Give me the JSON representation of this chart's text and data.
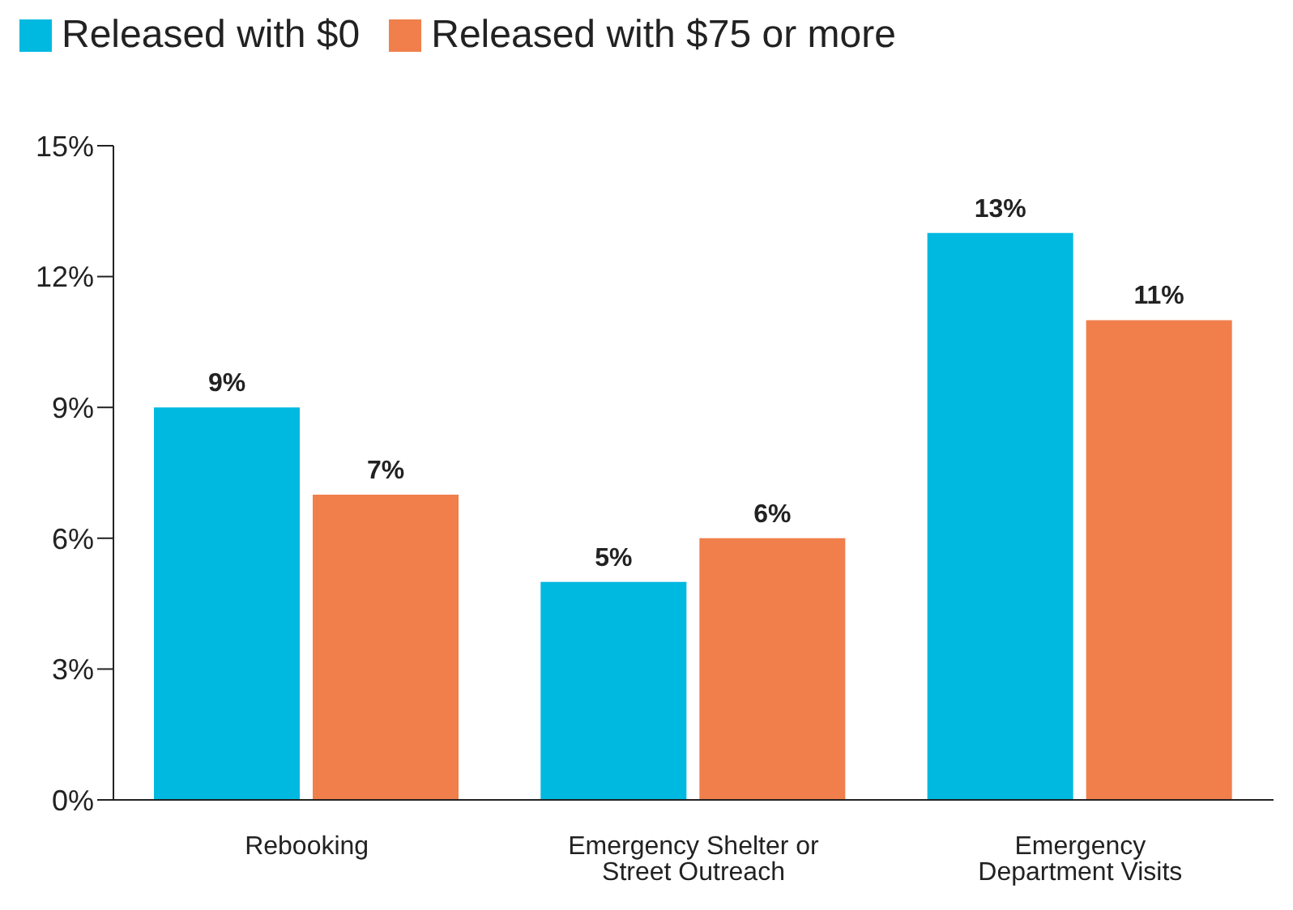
{
  "chart_data": {
    "type": "bar",
    "categories": [
      "Rebooking",
      "Emergency Shelter or Street Outreach",
      "Emergency Department Visits"
    ],
    "series": [
      {
        "name": "Released with $0",
        "color": "#00b9e0",
        "values": [
          9,
          5,
          13
        ],
        "value_labels": [
          "9%",
          "5%",
          "13%"
        ]
      },
      {
        "name": "Released with $75 or more",
        "color": "#f07f4c",
        "values": [
          7,
          6,
          11
        ],
        "value_labels": [
          "7%",
          "6%",
          "11%"
        ]
      }
    ],
    "ylim": [
      0,
      15
    ],
    "yticks": [
      {
        "value": 0,
        "label": "0%"
      },
      {
        "value": 3,
        "label": "3%"
      },
      {
        "value": 6,
        "label": "6%"
      },
      {
        "value": 9,
        "label": "9%"
      },
      {
        "value": 12,
        "label": "12%"
      },
      {
        "value": 15,
        "label": "15%"
      }
    ],
    "grid": false,
    "legend": "top left"
  }
}
